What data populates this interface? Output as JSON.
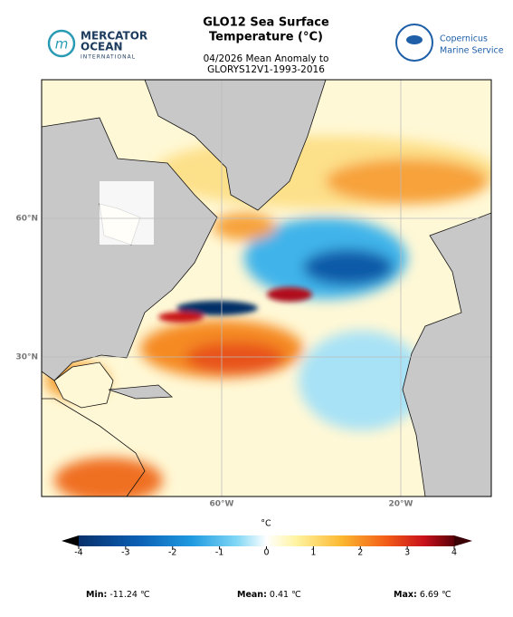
{
  "header": {
    "title_lines": [
      "GLO12 Sea Surface",
      "Temperature (°C)"
    ],
    "subtitle_lines": [
      "04/2026 Mean Anomaly to",
      "GLORYS12V1-1993-2016"
    ]
  },
  "logos": {
    "left": [
      "MERCATOR",
      "OCEAN",
      "INTERNATIONAL"
    ],
    "right": [
      "Copernicus",
      "Marine Service"
    ]
  },
  "map": {
    "lat_labels": [
      "60°N",
      "30°N"
    ],
    "lon_labels": [
      "60°W",
      "20°W"
    ]
  },
  "colorbar": {
    "unit": "°C",
    "range": [
      -4,
      4
    ],
    "ticks": [
      -4,
      -3,
      -2,
      -1,
      0,
      1,
      2,
      3,
      4
    ]
  },
  "stats": [
    {
      "label": "Min:",
      "value": "-11.24 ℃"
    },
    {
      "label": "Mean:",
      "value": "0.41 ℃"
    },
    {
      "label": "Max:",
      "value": "6.69 ℃"
    }
  ]
}
